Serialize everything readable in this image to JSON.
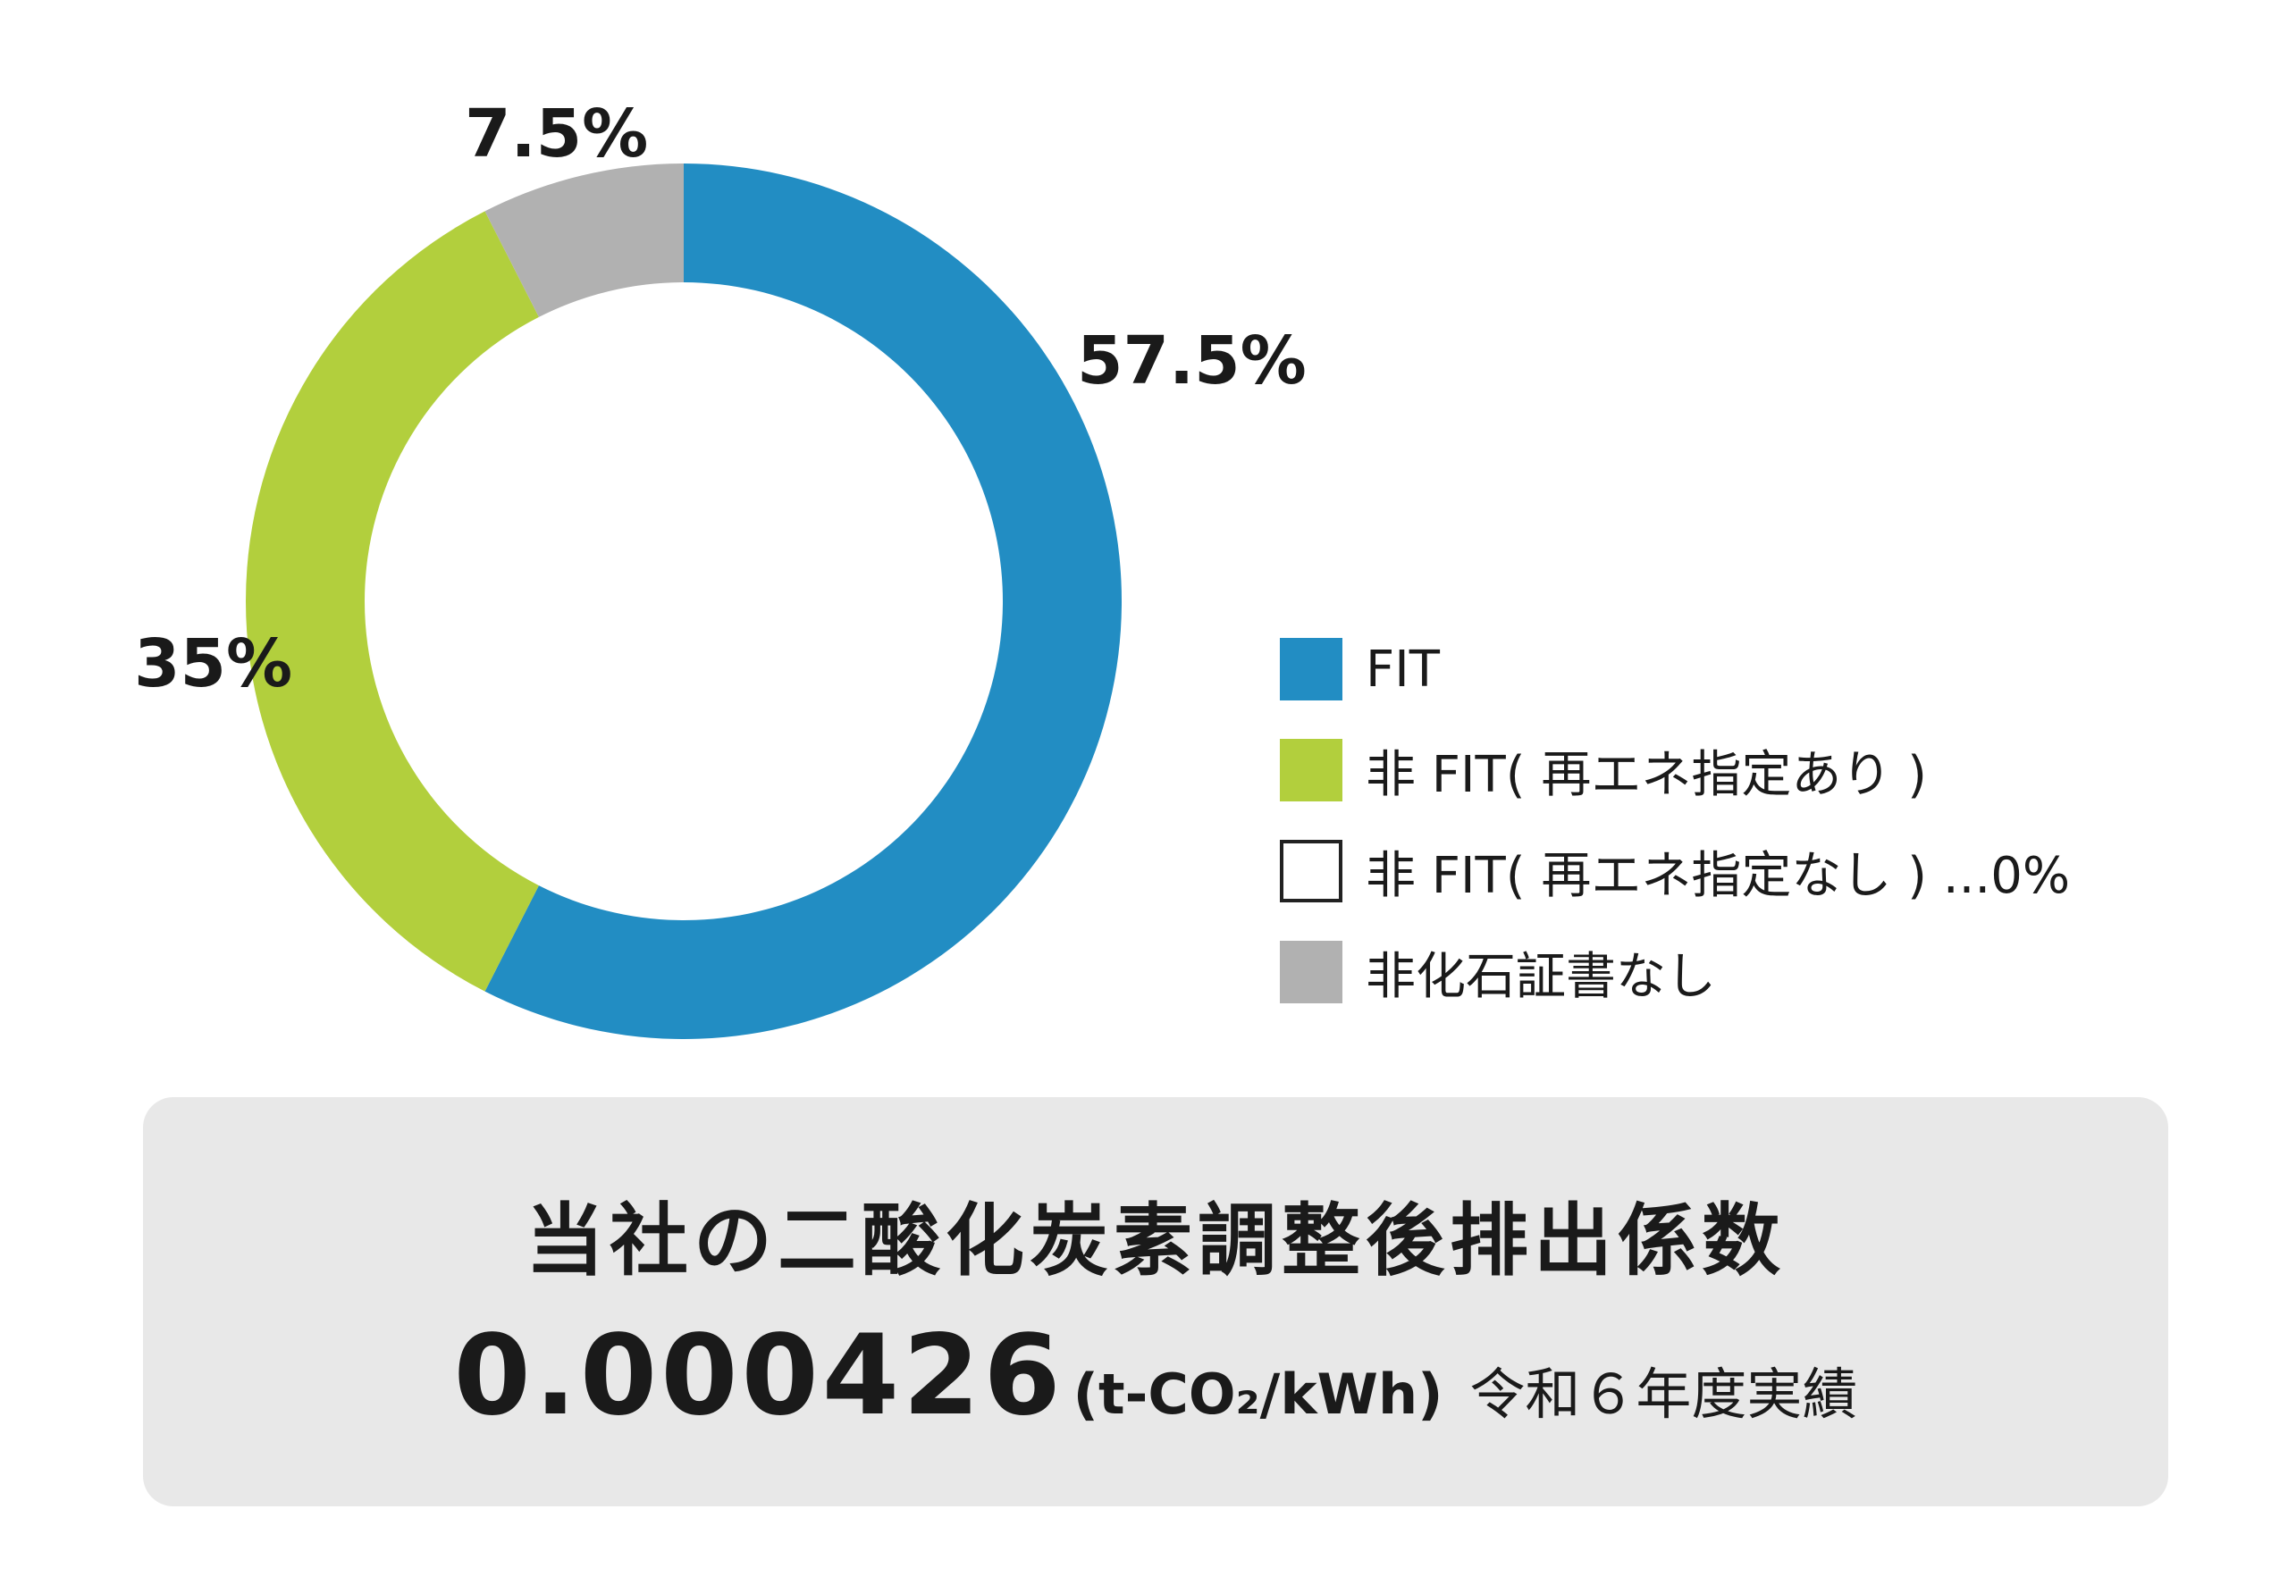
{
  "chart_data": {
    "type": "pie",
    "variant": "donut",
    "slices": [
      {
        "label": "FIT",
        "value": 57.5,
        "value_label": "57.5%",
        "color": "#228dc3"
      },
      {
        "label": "非 FIT( 再エネ指定あり )",
        "value": 35,
        "value_label": "35%",
        "color": "#b2cf3d"
      },
      {
        "label": "非化石証書なし",
        "value": 7.5,
        "value_label": "7.5%",
        "color": "#b1b1b1"
      }
    ],
    "legend": [
      {
        "label": "FIT",
        "color": "#228dc3"
      },
      {
        "label": "非 FIT( 再エネ指定あり )",
        "color": "#b2cf3d"
      },
      {
        "label": "非 FIT( 再エネ指定なし ) ...0%",
        "color": "#ffffff"
      },
      {
        "label": "非化石証書なし",
        "color": "#b1b1b1"
      }
    ],
    "legend_position": "right"
  },
  "summary": {
    "title": "当社の二酸化炭素調整後排出係数",
    "value": "0.000426",
    "unit": "(t-CO₂/kWh)",
    "period": "令和６年度実績"
  }
}
